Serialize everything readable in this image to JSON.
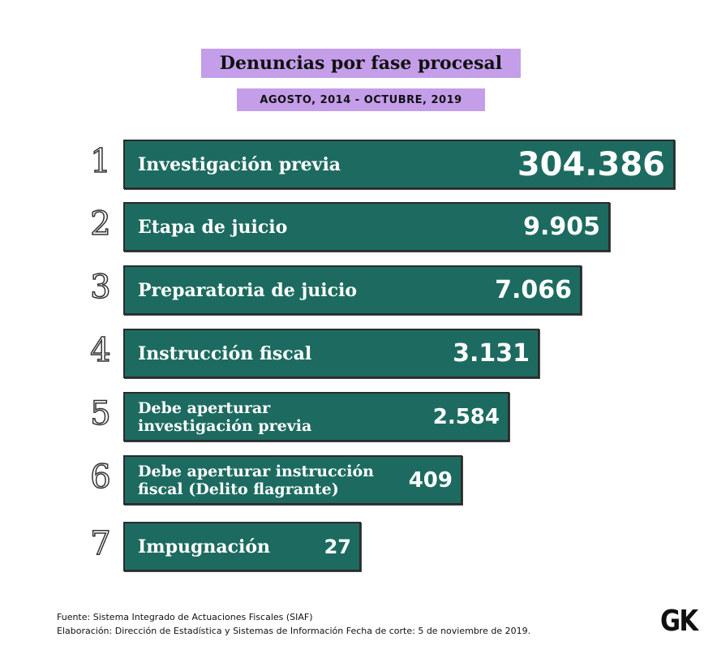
{
  "title": "Denuncias por fase procesal",
  "subtitle": "AGOSTO, 2014 - OCTUBRE, 2019",
  "colors": {
    "bar": "#1d6b60",
    "title_bg": "#c49ee9"
  },
  "chart_data": {
    "type": "bar",
    "orientation": "horizontal",
    "title": "Denuncias por fase procesal",
    "subtitle": "AGOSTO, 2014 - OCTUBRE, 2019",
    "ranks": [
      "1",
      "2",
      "3",
      "4",
      "5",
      "6",
      "7"
    ],
    "categories": [
      "Investigación previa",
      "Etapa de juicio",
      "Preparatoria de juicio",
      "Instrucción fiscal",
      "Debe aperturar investigación previa",
      "Debe aperturar instrucción fiscal (Delito flagrante)",
      "Impugnación"
    ],
    "values": [
      304386,
      9905,
      7066,
      3131,
      2584,
      409,
      27
    ],
    "value_labels": [
      "304.386",
      "9.905",
      "7.066",
      "3.131",
      "2.584",
      "409",
      "27"
    ]
  },
  "footer": {
    "source": "Fuente: Sistema Integrado de Actuaciones Fiscales (SIAF)",
    "credit": "Elaboración: Dirección de Estadística y Sistemas de Información  Fecha de corte: 5 de noviembre de 2019."
  },
  "logo": "GK"
}
